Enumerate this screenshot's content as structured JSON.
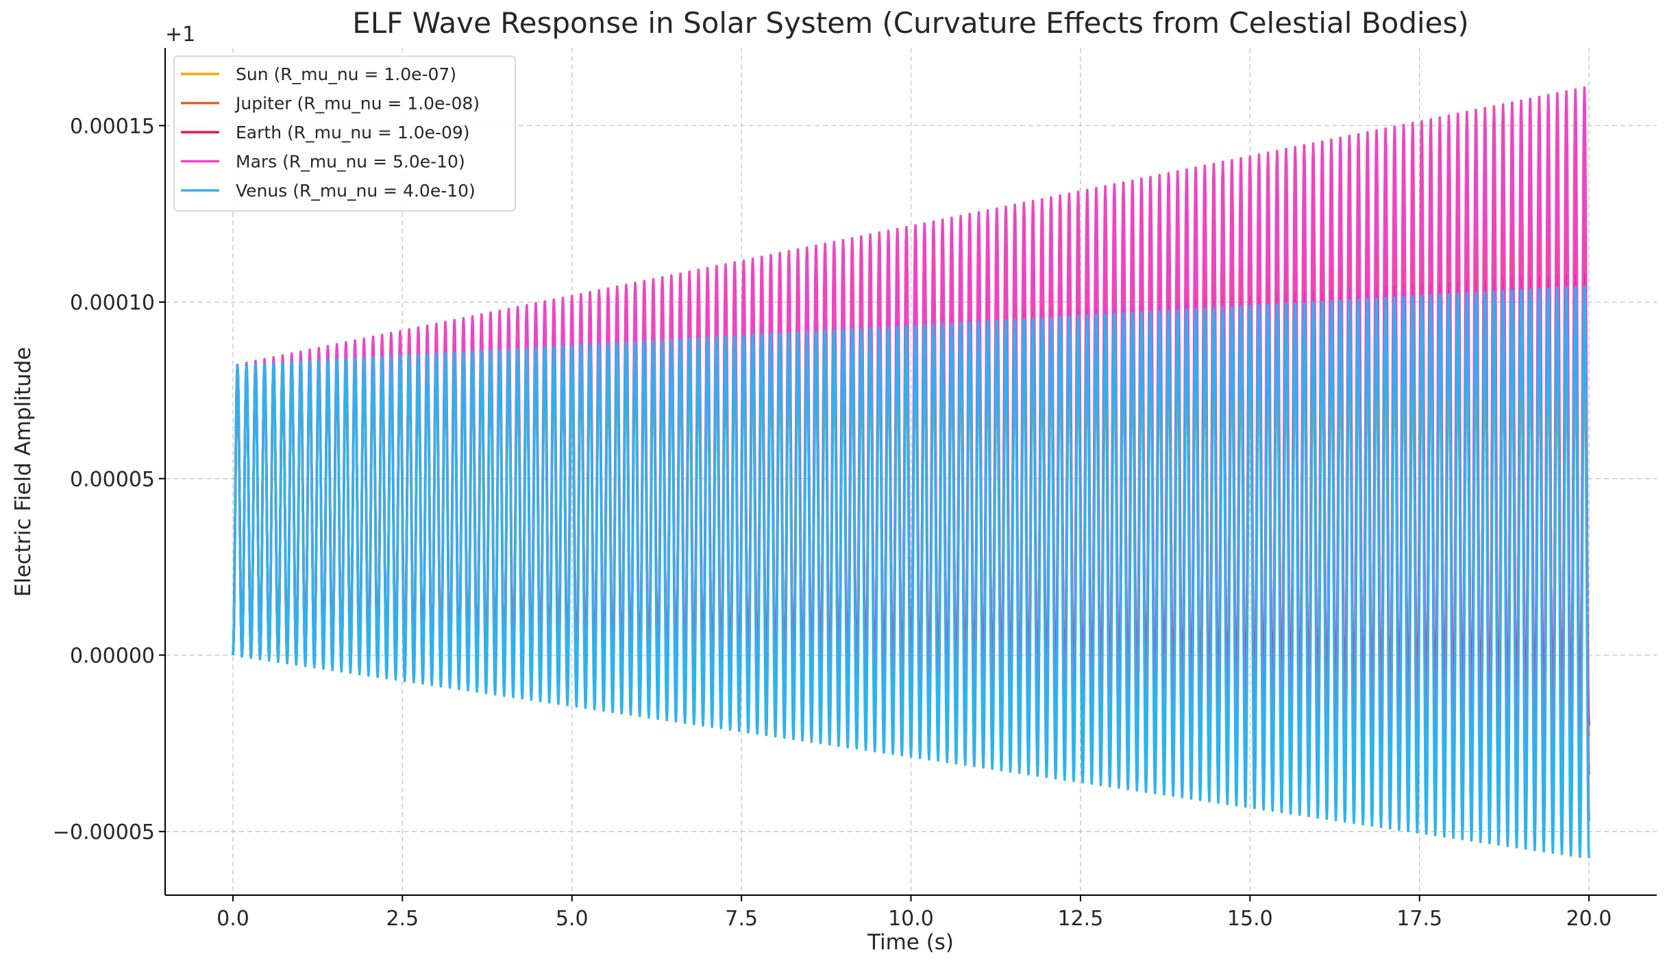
{
  "chart_data": {
    "type": "line",
    "title": "ELF Wave Response in Solar System (Curvature Effects from Celestial Bodies)",
    "xlabel": "Time (s)",
    "ylabel": "Electric Field Amplitude",
    "y_offset_label": "+1",
    "xlim": [
      -1.0,
      21.0
    ],
    "ylim": [
      -6.8e-05,
      0.000172
    ],
    "x_ticks": [
      0.0,
      2.5,
      5.0,
      7.5,
      10.0,
      12.5,
      15.0,
      17.5,
      20.0
    ],
    "x_tick_labels": [
      "0.0",
      "2.5",
      "5.0",
      "7.5",
      "10.0",
      "12.5",
      "15.0",
      "17.5",
      "20.0"
    ],
    "y_ticks": [
      -5e-05,
      0.0,
      5e-05,
      0.0001,
      0.00015
    ],
    "y_tick_labels": [
      "−0.00005",
      "0.00000",
      "0.00005",
      "0.00010",
      "0.00015"
    ],
    "grid": true,
    "legend_position": "upper-left",
    "oscillation_periods_over_x_range": 150,
    "series": [
      {
        "name": "Sun (R_mu_nu = 1.0e-07)",
        "color": "#FFA500",
        "center_start": 4.1e-05,
        "center_end": 3e-05,
        "amplitude_start": 4.1e-05,
        "amplitude_end": 5.3e-05
      },
      {
        "name": "Jupiter (R_mu_nu = 1.0e-08)",
        "color": "#F05A1A",
        "center_start": 4.1e-05,
        "center_end": 4.6e-05,
        "amplitude_start": 4.1e-05,
        "amplitude_end": 8e-05
      },
      {
        "name": "Earth (R_mu_nu = 1.0e-09)",
        "color": "#E8174F",
        "center_start": 4.1e-05,
        "center_end": 4.4e-05,
        "amplitude_start": 4.1e-05,
        "amplitude_end": 6.4e-05
      },
      {
        "name": "Mars (R_mu_nu = 5.0e-10)",
        "color": "#EE45C0",
        "center_start": 4.1e-05,
        "center_end": 5.7e-05,
        "amplitude_start": 4.1e-05,
        "amplitude_end": 0.000104
      },
      {
        "name": "Venus (R_mu_nu = 4.0e-10)",
        "color": "#2EB2EE",
        "center_start": 4.1e-05,
        "center_end": 2.35e-05,
        "amplitude_start": 4.1e-05,
        "amplitude_end": 8.1e-05
      }
    ]
  }
}
